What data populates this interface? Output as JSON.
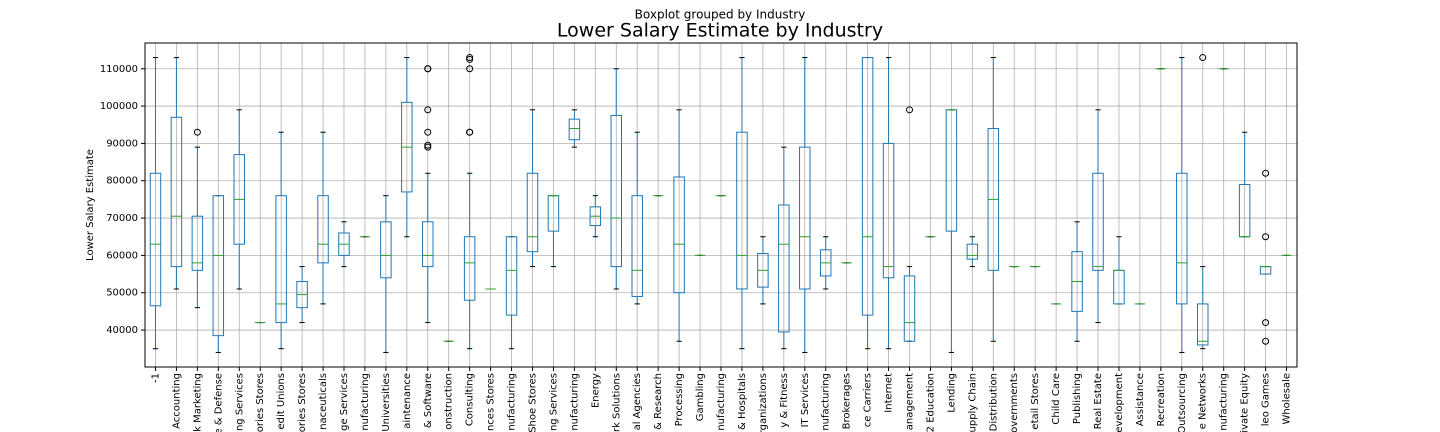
{
  "chart_data": {
    "type": "boxplot",
    "suptitle": "Boxplot grouped by Industry",
    "title": "Lower Salary Estimate by Industry",
    "y_label": "Lower Salary Estimate",
    "categories": [
      "-1",
      "Accounting",
      "k Marketing",
      "e & Defense",
      "ng Services",
      "ories Stores",
      "edit Unions",
      "ories Stores",
      "naceuticals",
      "ge Services",
      "nufacturing",
      "Universities",
      "aintenance",
      "& Software",
      "onstruction",
      "Consulting",
      "nces Stores",
      "nufacturing",
      "Shoe Stores",
      "ng Services",
      "nufacturing",
      "Energy",
      "rk Solutions",
      "al Agencies",
      "& Research",
      "Processing",
      "Gambling",
      "nufacturing",
      "& Hospitals",
      "rganizations",
      "y & Fitness",
      "IT Services",
      "nufacturing",
      "Brokerages",
      "ce Carriers",
      "Internet",
      "anagement",
      "2 Education",
      "Lending",
      "upply Chain",
      "Distribution",
      "overnments",
      "etail Stores",
      "Child Care",
      "Publishing",
      "Real Estate",
      "evelopment",
      "Assistance",
      "Recreation",
      "Outsourcing",
      "e Networks",
      "nufacturing",
      "rivate Equity",
      "leo Games",
      "Wholesale"
    ],
    "stats": [
      [
        35000,
        46500,
        63000,
        82000,
        113000
      ],
      [
        51000,
        57000,
        70500,
        97000,
        113000
      ],
      [
        46000,
        56000,
        58000,
        70500,
        89000
      ],
      [
        34000,
        38500,
        60000,
        76000,
        76000
      ],
      [
        51000,
        63000,
        75000,
        87000,
        99000
      ],
      [
        42000,
        42000,
        42000,
        42000,
        42000
      ],
      [
        35000,
        42000,
        47000,
        76000,
        93000
      ],
      [
        42000,
        46000,
        49500,
        53000,
        57000
      ],
      [
        47000,
        58000,
        63000,
        76000,
        93000
      ],
      [
        57000,
        60000,
        63000,
        66000,
        69000
      ],
      [
        65000,
        65000,
        65000,
        65000,
        65000
      ],
      [
        34000,
        54000,
        60000,
        69000,
        76000
      ],
      [
        65000,
        77000,
        89000,
        101000,
        113000
      ],
      [
        42000,
        57000,
        60000,
        69000,
        82000
      ],
      [
        37000,
        37000,
        37000,
        37000,
        37000
      ],
      [
        35000,
        48000,
        58000,
        65000,
        82000
      ],
      [
        51000,
        51000,
        51000,
        51000,
        51000
      ],
      [
        35000,
        44000,
        56000,
        65000,
        65000
      ],
      [
        57000,
        61000,
        65000,
        82000,
        99000
      ],
      [
        57000,
        66500,
        76000,
        76000,
        76000
      ],
      [
        89000,
        91000,
        94000,
        96500,
        99000
      ],
      [
        65000,
        68000,
        70500,
        73000,
        76000
      ],
      [
        51000,
        57000,
        70000,
        97500,
        110000
      ],
      [
        47000,
        49000,
        56000,
        76000,
        93000
      ],
      [
        76000,
        76000,
        76000,
        76000,
        76000
      ],
      [
        37000,
        50000,
        63000,
        81000,
        99000
      ],
      [
        60000,
        60000,
        60000,
        60000,
        60000
      ],
      [
        76000,
        76000,
        76000,
        76000,
        76000
      ],
      [
        35000,
        51000,
        60000,
        93000,
        113000
      ],
      [
        47000,
        51500,
        56000,
        60500,
        65000
      ],
      [
        35000,
        39500,
        63000,
        73500,
        89000
      ],
      [
        34000,
        51000,
        65000,
        89000,
        113000
      ],
      [
        51000,
        54500,
        58000,
        61500,
        65000
      ],
      [
        58000,
        58000,
        58000,
        58000,
        58000
      ],
      [
        35000,
        44000,
        65000,
        113000,
        113000
      ],
      [
        35000,
        54000,
        57000,
        90000,
        113000
      ],
      [
        37000,
        37000,
        42000,
        54500,
        57000
      ],
      [
        65000,
        65000,
        65000,
        65000,
        65000
      ],
      [
        34000,
        66500,
        99000,
        99000,
        99000
      ],
      [
        57000,
        59000,
        60000,
        63000,
        65000
      ],
      [
        37000,
        56000,
        75000,
        94000,
        113000
      ],
      [
        57000,
        57000,
        57000,
        57000,
        57000
      ],
      [
        57000,
        57000,
        57000,
        57000,
        57000
      ],
      [
        47000,
        47000,
        47000,
        47000,
        47000
      ],
      [
        37000,
        45000,
        53000,
        61000,
        69000
      ],
      [
        42000,
        56000,
        57000,
        82000,
        99000
      ],
      [
        47000,
        47000,
        56000,
        56000,
        65000
      ],
      [
        47000,
        47000,
        47000,
        47000,
        47000
      ],
      [
        110000,
        110000,
        110000,
        110000,
        110000
      ],
      [
        34000,
        47000,
        58000,
        82000,
        113000
      ],
      [
        35000,
        36000,
        37000,
        47000,
        57000
      ],
      [
        110000,
        110000,
        110000,
        110000,
        110000
      ],
      [
        65000,
        65000,
        65000,
        79000,
        93000
      ],
      [
        55000,
        55000,
        57000,
        57000,
        57000
      ],
      [
        60000,
        60000,
        60000,
        60000,
        60000
      ]
    ],
    "fliers": [
      [],
      [],
      [
        93000
      ],
      [],
      [],
      [],
      [],
      [],
      [],
      [],
      [],
      [],
      [],
      [
        89000,
        89500,
        93000,
        99000,
        110000,
        110000
      ],
      [],
      [
        93000,
        93000,
        110000,
        112500,
        113000
      ],
      [],
      [],
      [],
      [],
      [],
      [],
      [],
      [],
      [],
      [],
      [],
      [],
      [],
      [],
      [],
      [],
      [],
      [],
      [],
      [],
      [
        99000
      ],
      [],
      [],
      [],
      [],
      [],
      [],
      [],
      [],
      [],
      [],
      [],
      [],
      [],
      [
        113000
      ],
      [],
      [],
      [
        82000,
        65000,
        42000,
        37000
      ],
      []
    ],
    "box_color": "#1f77b4",
    "median_color": "#2ca02c",
    "flier_color": "#000000",
    "ylim": [
      30100,
      116900
    ],
    "yticks": [
      40000,
      50000,
      60000,
      70000,
      80000,
      90000,
      100000,
      110000
    ],
    "grid": true
  }
}
